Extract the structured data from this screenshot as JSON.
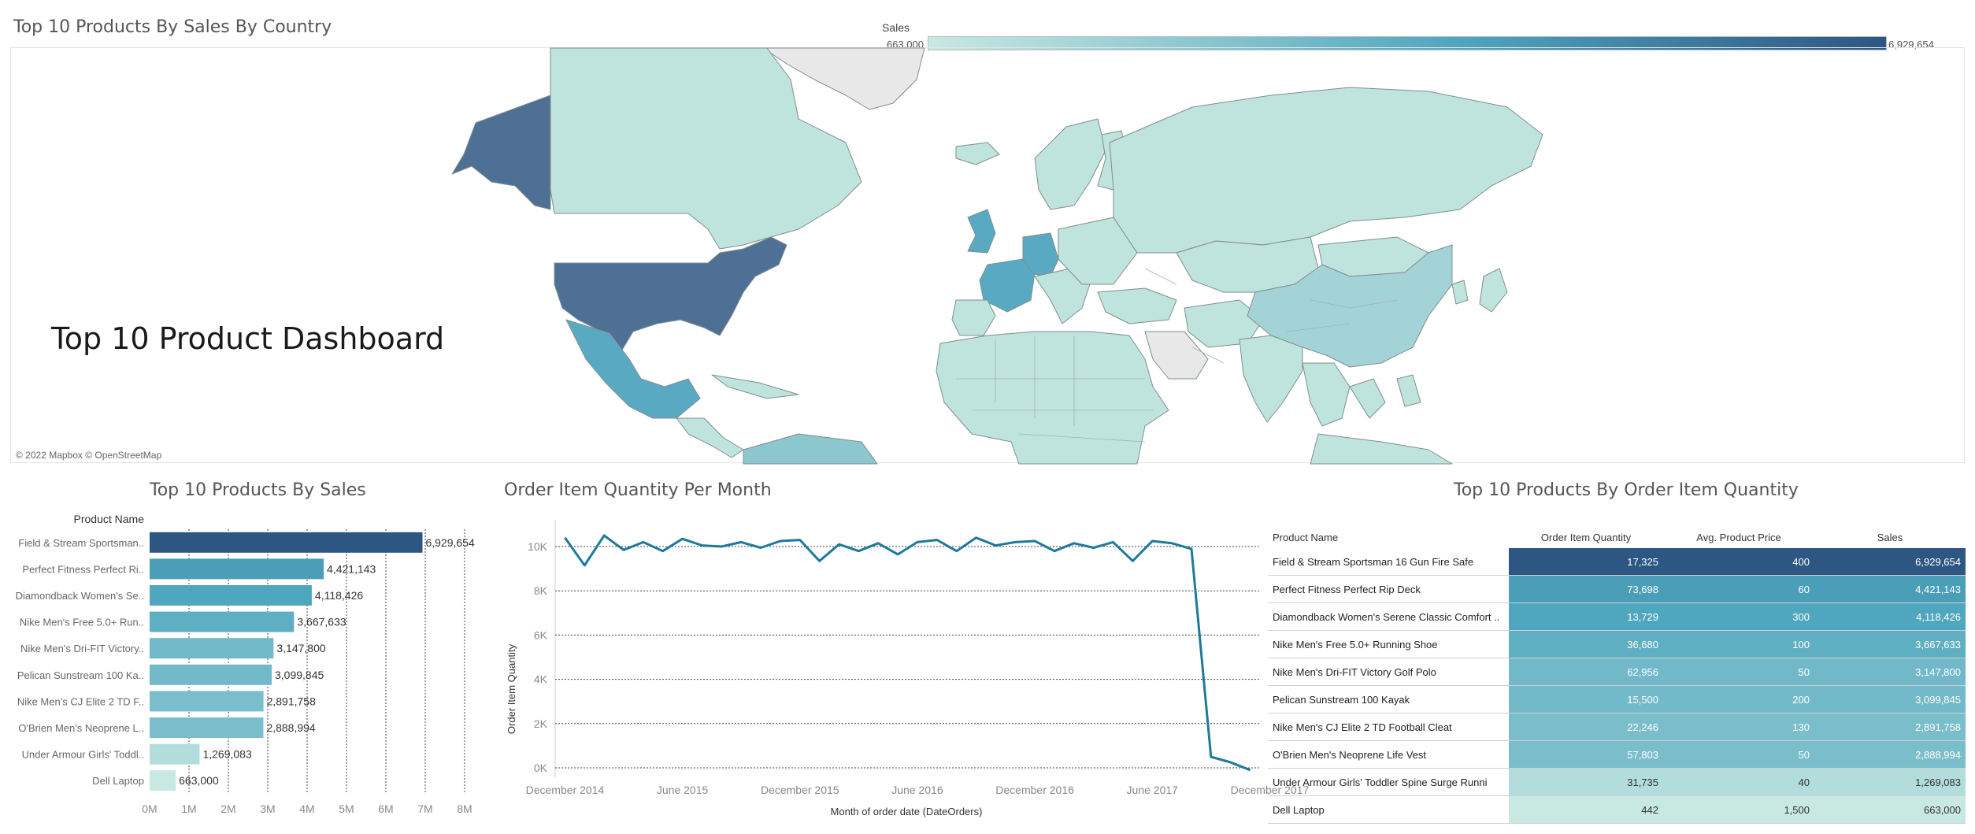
{
  "dashboard_title": "Top 10 Product Dashboard",
  "map": {
    "title": "Top 10 Products By Sales By Country",
    "attribution": "© 2022 Mapbox © OpenStreetMap",
    "legend": {
      "title": "Sales",
      "min_label": "663,000",
      "max_label": "6,929,654"
    }
  },
  "colors": {
    "dark": "#4e7094",
    "mid": "#5aa9c2",
    "light": "#bfe3dd",
    "line": "#1d7a9c"
  },
  "chart_data": [
    {
      "type": "bar",
      "title": "Top 10 Products By Sales",
      "column_header": "Product Name",
      "categories": [
        "Field & Stream Sportsman..",
        "Perfect Fitness Perfect Ri..",
        "Diamondback Women's Se..",
        "Nike Men's Free 5.0+ Run..",
        "Nike Men's Dri-FIT Victory..",
        "Pelican Sunstream 100 Ka..",
        "Nike Men's CJ Elite 2 TD F..",
        "O'Brien Men's Neoprene L..",
        "Under Armour Girls' Toddl..",
        "Dell Laptop"
      ],
      "values": [
        6929654,
        4421143,
        4118426,
        3667633,
        3147800,
        3099845,
        2891758,
        2888994,
        1269083,
        663000
      ],
      "value_labels": [
        "6,929,654",
        "4,421,143",
        "4,118,426",
        "3,667,633",
        "3,147,800",
        "3,099,845",
        "2,891,758",
        "2,888,994",
        "1,269,083",
        "663,000"
      ],
      "xlim": [
        0,
        8000000
      ],
      "x_ticks": [
        "0M",
        "1M",
        "2M",
        "3M",
        "4M",
        "5M",
        "6M",
        "7M",
        "8M"
      ]
    },
    {
      "type": "line",
      "title": "Order Item Quantity Per Month",
      "xlabel": "Month of order date (DateOrders)",
      "ylabel": "Order Item Quantity",
      "ylim": [
        0,
        10500
      ],
      "y_ticks": [
        0,
        2000,
        4000,
        6000,
        8000,
        10000
      ],
      "y_tick_labels": [
        "0K",
        "2K",
        "4K",
        "6K",
        "8K",
        "10K"
      ],
      "x_tick_labels": [
        "December 2014",
        "June 2015",
        "December 2015",
        "June 2016",
        "December 2016",
        "June 2017",
        "December 2017"
      ],
      "x_tick_index": [
        0,
        6,
        12,
        18,
        24,
        30,
        36
      ],
      "values": [
        10400,
        9150,
        10500,
        9850,
        10200,
        9800,
        10350,
        10050,
        10000,
        10200,
        9950,
        10250,
        10300,
        9350,
        10100,
        9800,
        10150,
        9650,
        10200,
        10300,
        9800,
        10400,
        10050,
        10200,
        10250,
        9800,
        10150,
        9950,
        10200,
        9350,
        10250,
        10150,
        9900,
        500,
        250,
        -100
      ]
    },
    {
      "type": "table",
      "title": "Top 10 Products By Order Item Quantity",
      "columns": [
        "Product Name",
        "Order Item Quantity",
        "Avg. Product Price",
        "Sales"
      ],
      "rows": [
        [
          "Field & Stream Sportsman 16 Gun Fire Safe",
          "17,325",
          "400",
          "6,929,654"
        ],
        [
          "Perfect Fitness Perfect Rip Deck",
          "73,698",
          "60",
          "4,421,143"
        ],
        [
          "Diamondback Women's Serene Classic Comfort ..",
          "13,729",
          "300",
          "4,118,426"
        ],
        [
          "Nike Men's Free 5.0+ Running Shoe",
          "36,680",
          "100",
          "3,667,633"
        ],
        [
          "Nike Men's Dri-FIT Victory Golf Polo",
          "62,956",
          "50",
          "3,147,800"
        ],
        [
          "Pelican Sunstream 100 Kayak",
          "15,500",
          "200",
          "3,099,845"
        ],
        [
          "Nike Men's CJ Elite 2 TD Football Cleat",
          "22,246",
          "130",
          "2,891,758"
        ],
        [
          "O'Brien Men's Neoprene Life Vest",
          "57,803",
          "50",
          "2,888,994"
        ],
        [
          "Under Armour Girls' Toddler Spine Surge Runni",
          "31,735",
          "40",
          "1,269,083"
        ],
        [
          "Dell Laptop",
          "442",
          "1,500",
          "663,000"
        ]
      ],
      "sales_values": [
        6929654,
        4421143,
        4118426,
        3667633,
        3147800,
        3099845,
        2891758,
        2888994,
        1269083,
        663000
      ]
    }
  ]
}
